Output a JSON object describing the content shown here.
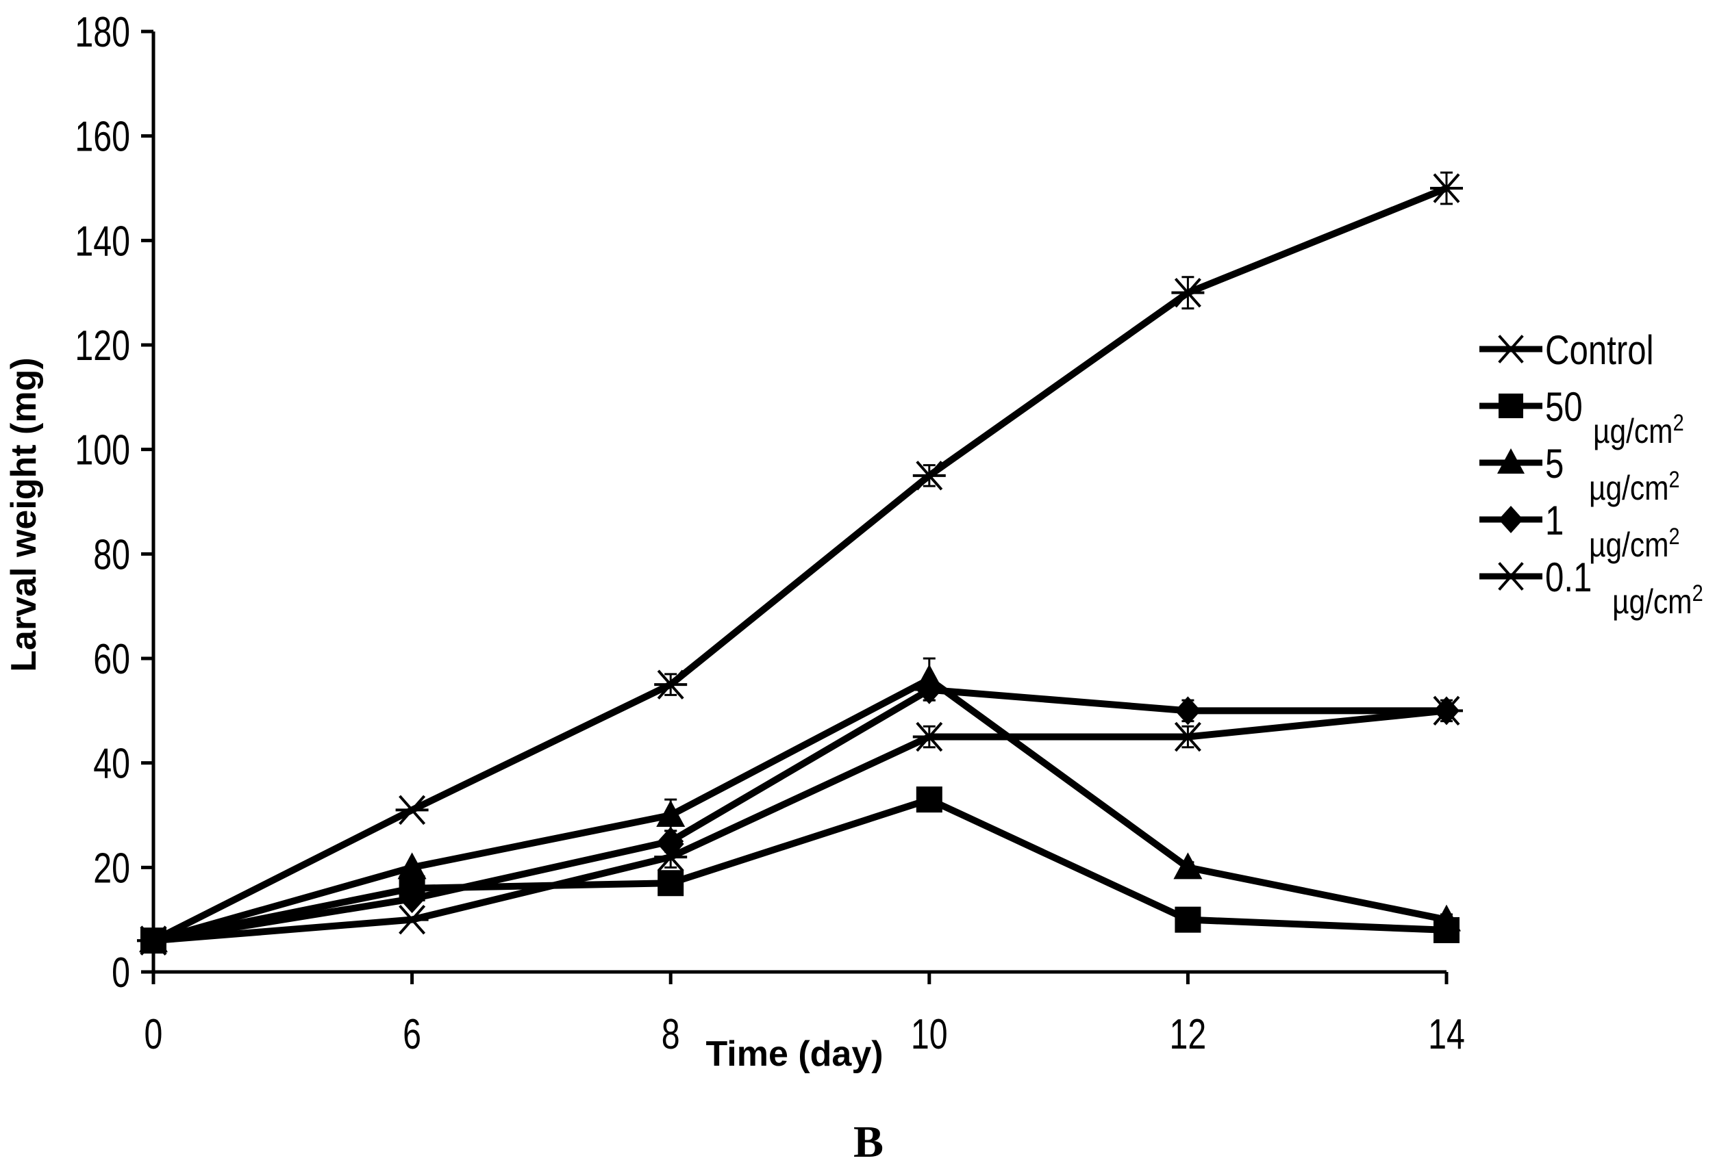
{
  "chart_data": {
    "type": "line",
    "title": "",
    "panel_label": "B",
    "xlabel": "Time (day)",
    "ylabel": "Larval weight (mg)",
    "x": [
      "0",
      "6",
      "8",
      "10",
      "12",
      "14"
    ],
    "yticks": [
      "0",
      "20",
      "40",
      "60",
      "80",
      "100",
      "120",
      "140",
      "160",
      "180"
    ],
    "ylim": [
      0,
      180
    ],
    "grid": false,
    "legend_position": "right",
    "unit": "µg/cm",
    "unit_sup": "2",
    "series": [
      {
        "name": "Control",
        "unit": "",
        "marker": "asterisk",
        "values": [
          6,
          31,
          55,
          95,
          130,
          150
        ],
        "errors": [
          0,
          0,
          2,
          2,
          3,
          3
        ]
      },
      {
        "name": "50",
        "unit": "µg/cm2",
        "marker": "square",
        "values": [
          6,
          16,
          17,
          33,
          10,
          8
        ],
        "errors": [
          0,
          0,
          1,
          1,
          1,
          1
        ]
      },
      {
        "name": "5",
        "unit": "µg/cm2",
        "marker": "triangle",
        "values": [
          6,
          20,
          30,
          56,
          20,
          10
        ],
        "errors": [
          0,
          0,
          3,
          4,
          1,
          1
        ]
      },
      {
        "name": "1",
        "unit": "µg/cm2",
        "marker": "diamond",
        "values": [
          6,
          14,
          25,
          54,
          50,
          50
        ],
        "errors": [
          0,
          0,
          2,
          2,
          2,
          2
        ]
      },
      {
        "name": "0.1",
        "unit": "µg/cm2",
        "marker": "asterisk",
        "values": [
          6,
          10,
          22,
          45,
          45,
          50
        ],
        "errors": [
          0,
          0,
          2,
          2,
          2,
          1
        ]
      }
    ]
  }
}
